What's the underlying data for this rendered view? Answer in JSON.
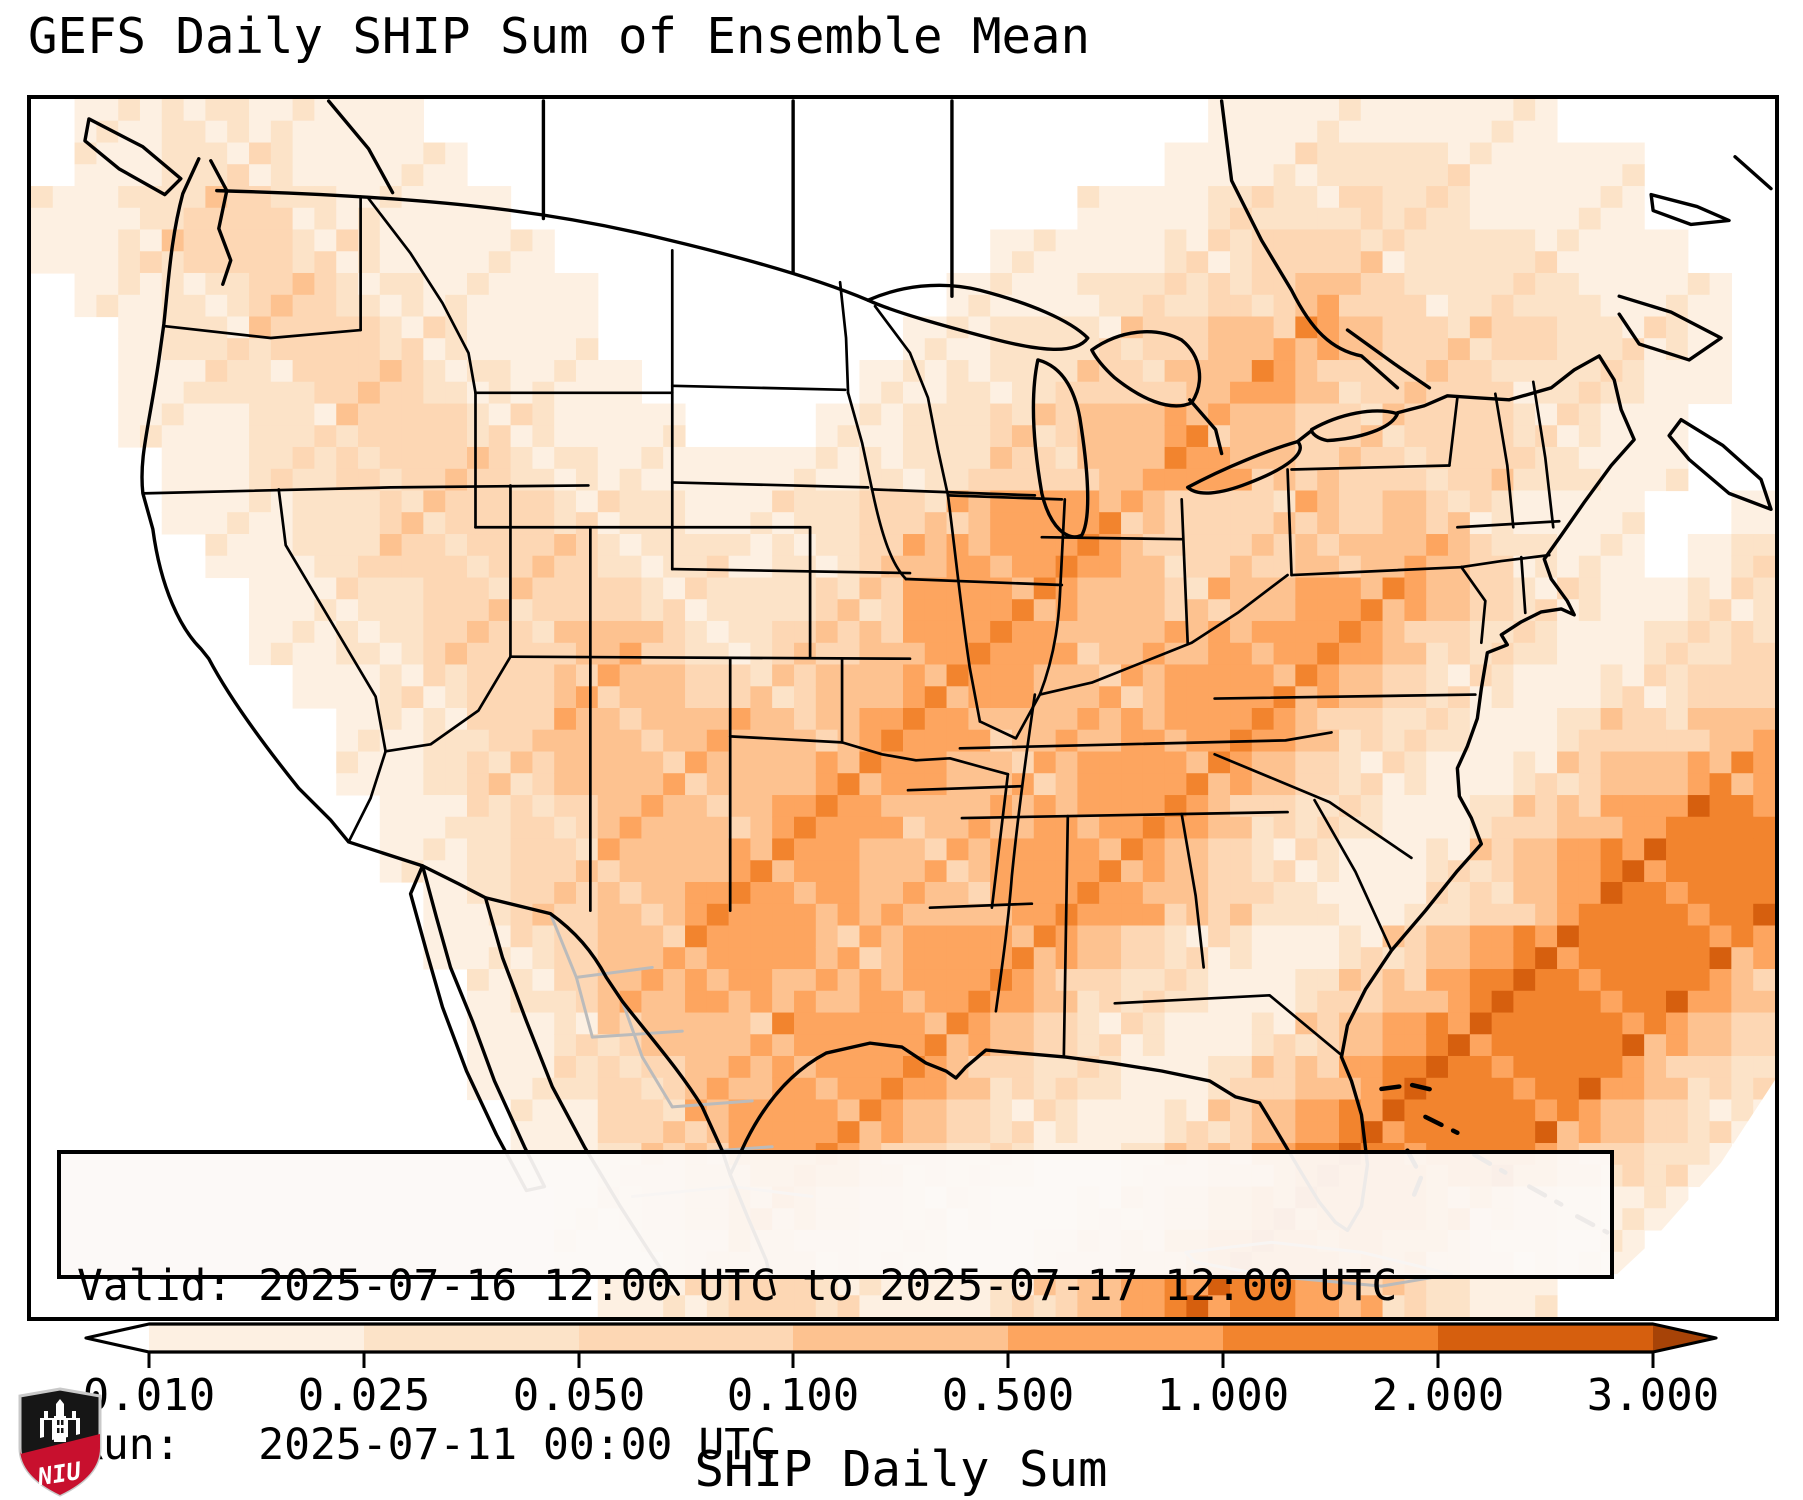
{
  "title": "GEFS Daily SHIP Sum of Ensemble Mean",
  "annotation_box": {
    "valid_line": "Valid: 2025-07-16 12:00 UTC to 2025-07-17 12:00 UTC",
    "run_line": "Run:   2025-07-11 00:00 UTC"
  },
  "colorbar": {
    "label": "SHIP Daily Sum",
    "tick_labels": [
      "0.010",
      "0.025",
      "0.050",
      "0.100",
      "0.500",
      "1.000",
      "2.000",
      "3.000"
    ],
    "levels": [
      0.01,
      0.025,
      0.05,
      0.1,
      0.5,
      1.0,
      2.0,
      3.0
    ],
    "segment_colors": [
      "#fdf0e2",
      "#fce3c8",
      "#fdd7b4",
      "#fdc290",
      "#fda55f",
      "#f2842e",
      "#d65f0e"
    ],
    "under_color": "#ffffff",
    "over_color": "#a74307",
    "extend": "both",
    "outline_color": "#000000"
  },
  "map": {
    "background": "#ffffff",
    "border_color": "#000000",
    "coastline_color": "#000000",
    "foreign_border_color": "#bbbbbb",
    "grid": {
      "cols": 40,
      "rows": 28,
      "legend": "each digit = color level index: 0 under(white), 1-7 fill levels, 8 over",
      "rows_data": [
        "0112211110000000000000000001111111100000",
        "0112221111000000000000000011122221111000",
        "1122332111100000000000001112223221111000",
        "1123332211110000000000111122333222211100",
        "0112233221111000000001112223343322221110",
        "0012233322111000000011222334454333322210",
        "0011223332211100000112223344543333222110",
        "0011122333221110001122334454433333221100",
        "0001122333322111111222334455433333221100",
        "0001112233332221122334555433343432111001",
        "0000112233333222122345555433344443211012",
        "0000011223333322223355554434455543221122",
        "0000011223334432233455554445555432211223",
        "0000001122334443334455544455554322112233",
        "0000000112334444444555444555543221123344",
        "0000000112334444445554445555432211234455",
        "0000000011233444455544455554322112345566",
        "0000000011233444555444555543221123456666",
        "0000000001233445555444555543221123456666",
        "0000000001123445554455554322112345666665",
        "0000000000123445544555543221123456666654",
        "0000000000112344455555432211234566666543",
        "0000000000112334455554322112345666665432",
        "0000000000011334555543221123456666654321",
        "0000000000011234555432211234566666543210",
        "0000000000001234554322112345666654321100",
        "0000000000001123443221123456666543211000",
        "0000000000000112332111234566654321100000"
      ]
    }
  },
  "logo": {
    "text": "NIU",
    "shield_color": "#161616",
    "band_color": "#c8102e",
    "border_color": "#c9c9c9",
    "castle_color": "#ffffff"
  }
}
